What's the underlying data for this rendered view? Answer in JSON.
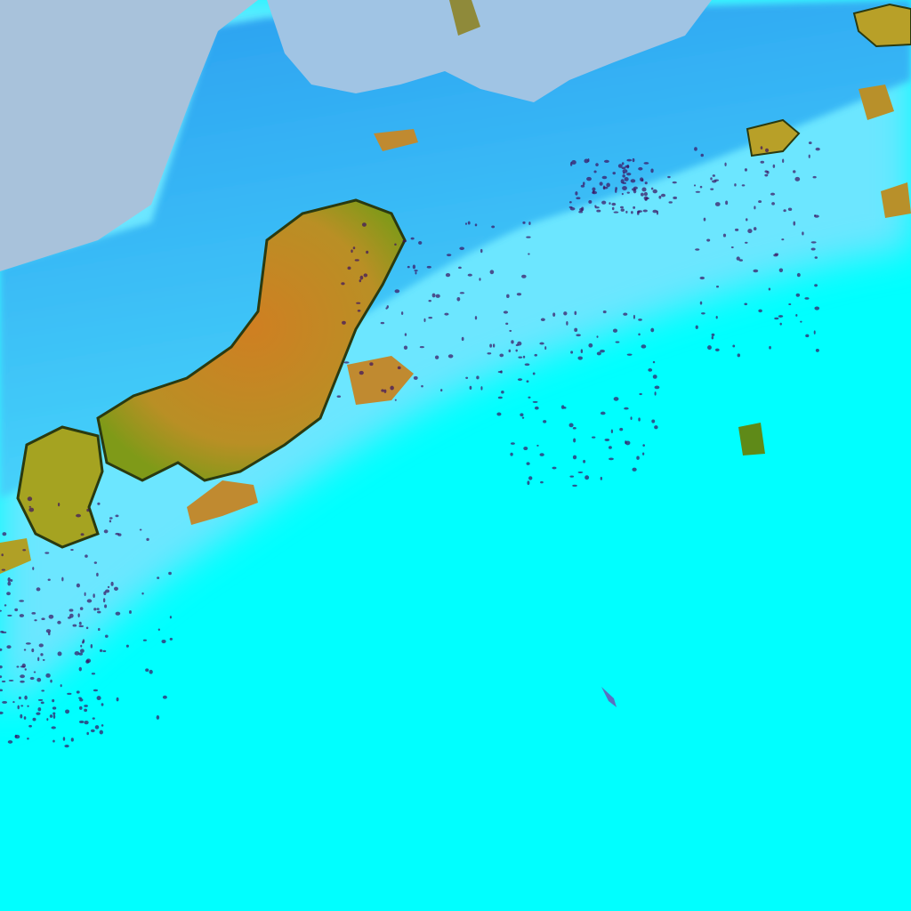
{
  "image": {
    "kind": "false-color satellite imagery",
    "colors": {
      "clear_region": "#00ffff",
      "haze_region": "#7fe8ff",
      "blue_band": "#2aa8f2",
      "pale_top_left": "#a9c4dc",
      "pale_top_center": "#9fc8e8",
      "cloud_core": "#c98a28",
      "cloud_edge": "#8f9a1a",
      "speckle": "#3a1060"
    }
  }
}
